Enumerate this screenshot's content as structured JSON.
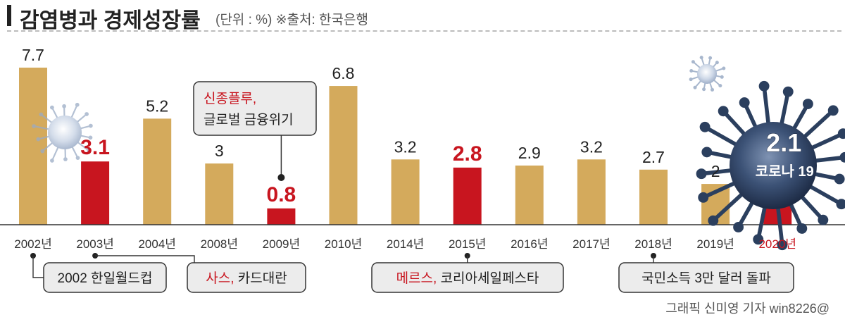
{
  "header": {
    "title": "감염병과 경제성장률",
    "subtitle": "(단위 : %) ※출처: 한국은행"
  },
  "colors": {
    "normal_bar": "#d4aa5c",
    "epidemic_bar": "#c8151f",
    "epidemic_text": "#c8151f",
    "label_dark": "#222222",
    "callout_bg": "#ececec",
    "covid_body": "#2b3f5e"
  },
  "chart_data": {
    "type": "bar",
    "title": "감염병과 경제성장률",
    "unit": "%",
    "source": "한국은행",
    "categories": [
      "2002년",
      "2003년",
      "2004년",
      "2008년",
      "2009년",
      "2010년",
      "2014년",
      "2015년",
      "2016년",
      "2017년",
      "2018년",
      "2019년",
      "2020년"
    ],
    "values": [
      7.7,
      3.1,
      5.2,
      3,
      0.8,
      6.8,
      3.2,
      2.8,
      2.9,
      3.2,
      2.7,
      2,
      2.1
    ],
    "value_labels": [
      "7.7",
      "3.1",
      "5.2",
      "3",
      "0.8",
      "6.8",
      "3.2",
      "2.8",
      "2.9",
      "3.2",
      "2.7",
      "2",
      "2.1"
    ],
    "highlight": [
      false,
      true,
      false,
      false,
      true,
      false,
      false,
      true,
      false,
      false,
      false,
      false,
      true
    ],
    "ylim": [
      0,
      7.7
    ],
    "grid": false,
    "annotations": {
      "covid_label": "코로나 19",
      "flu_callout": [
        "신종플루,",
        "글로벌 금융위기"
      ],
      "events": [
        {
          "parts": [
            {
              "text": "2002 한일월드컵",
              "red": false
            }
          ]
        },
        {
          "parts": [
            {
              "text": "사스,",
              "red": true
            },
            {
              "text": " 카드대란",
              "red": false
            }
          ]
        },
        {
          "parts": [
            {
              "text": "메르스,",
              "red": true
            },
            {
              "text": " 코리아세일페스타",
              "red": false
            }
          ]
        },
        {
          "parts": [
            {
              "text": "국민소득 3만 달러 돌파",
              "red": false
            }
          ]
        }
      ]
    }
  },
  "credit": "그래픽 신미영 기자 win8226@"
}
